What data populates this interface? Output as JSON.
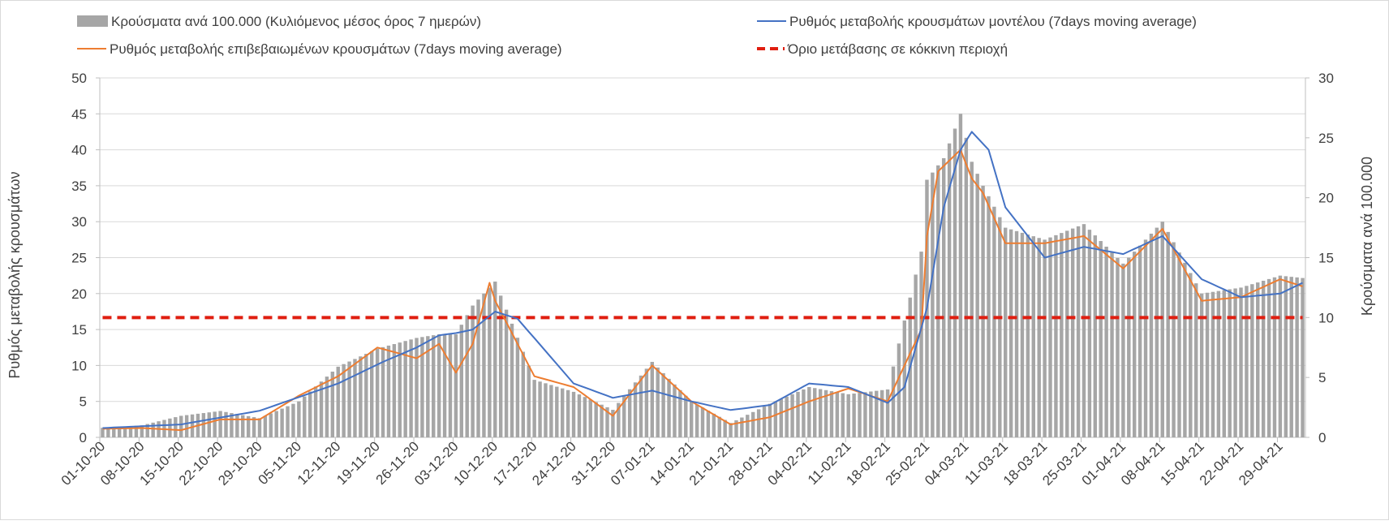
{
  "chart_data": {
    "type": "bar+line",
    "legend": {
      "bars": "Κρούσματα ανά 100.000 (Κυλιόμενος μέσος όρος 7 ημερών)",
      "model": "Ρυθμός μεταβολής κρουσμάτων μοντέλου (7days moving average)",
      "confirmed": "Ρυθμός μεταβολής επιβεβαιωμένων κρουσμάτων (7days moving average)",
      "threshold": "Όριο μετάβασης σε κόκκινη περιοχή"
    },
    "ylabel_left": "Ρυθμός μεταβολής κρουσμάτων",
    "ylabel_right": "Κρούσματα ανά 100.000",
    "ylim_left": [
      0,
      50
    ],
    "ylim_right": [
      0,
      30
    ],
    "yticks_left": [
      "0",
      "5",
      "10",
      "15",
      "20",
      "25",
      "30",
      "35",
      "40",
      "45",
      "50"
    ],
    "yticks_right": [
      "0",
      "5",
      "10",
      "15",
      "20",
      "25",
      "30"
    ],
    "x_tick_labels": [
      "01-10-20",
      "08-10-20",
      "15-10-20",
      "22-10-20",
      "29-10-20",
      "05-11-20",
      "12-11-20",
      "19-11-20",
      "26-11-20",
      "03-12-20",
      "10-12-20",
      "17-12-20",
      "24-12-20",
      "31-12-20",
      "07-01-21",
      "14-01-21",
      "21-01-21",
      "28-01-21",
      "04-02-21",
      "11-02-21",
      "18-02-21",
      "25-02-21",
      "04-03-21",
      "11-03-21",
      "18-03-21",
      "25-03-21",
      "01-04-21",
      "08-04-21",
      "15-04-21",
      "22-04-21",
      "29-04-21"
    ],
    "num_days": 215,
    "threshold_value": 10,
    "bar_anchors_days": [
      0,
      7,
      14,
      21,
      28,
      35,
      42,
      49,
      56,
      60,
      63,
      66,
      70,
      77,
      84,
      91,
      98,
      105,
      112,
      119,
      126,
      133,
      140,
      146,
      147,
      150,
      153,
      155,
      157,
      161,
      168,
      175,
      182,
      189,
      196,
      203,
      210,
      214
    ],
    "bar_anchors_values": [
      0.8,
      1.0,
      1.8,
      2.2,
      1.6,
      3.0,
      5.9,
      7.4,
      8.3,
      8.6,
      8.6,
      11.0,
      13.0,
      4.8,
      3.8,
      2.3,
      6.3,
      3.0,
      1.2,
      2.8,
      4.2,
      3.6,
      4.0,
      15.5,
      21.5,
      23.3,
      27.0,
      23.0,
      21.0,
      17.5,
      16.5,
      17.8,
      14.5,
      18.0,
      12.0,
      12.5,
      13.5,
      13.3
    ],
    "confirmed_anchors_days": [
      0,
      7,
      14,
      21,
      28,
      35,
      42,
      49,
      56,
      60,
      63,
      66,
      69,
      70,
      77,
      84,
      91,
      98,
      105,
      112,
      119,
      126,
      133,
      140,
      146,
      147,
      149,
      153,
      155,
      157,
      161,
      168,
      175,
      182,
      189,
      196,
      203,
      210,
      214
    ],
    "confirmed_anchors_values": [
      1.2,
      1.3,
      1.0,
      2.5,
      2.5,
      5.8,
      8.5,
      12.5,
      11.0,
      13.0,
      9.0,
      13.0,
      21.5,
      19.0,
      8.5,
      7.0,
      3.0,
      10.0,
      5.0,
      1.8,
      2.8,
      5.0,
      6.8,
      5.0,
      15.0,
      28.0,
      37.0,
      40.0,
      36.0,
      34.0,
      27.0,
      27.0,
      28.0,
      23.5,
      29.0,
      19.0,
      19.5,
      22.0,
      21.0
    ],
    "model_anchors_days": [
      0,
      14,
      28,
      42,
      50,
      56,
      60,
      63,
      66,
      70,
      74,
      84,
      91,
      98,
      105,
      112,
      119,
      126,
      133,
      140,
      143,
      147,
      150,
      153,
      155,
      158,
      161,
      168,
      175,
      182,
      189,
      196,
      203,
      210,
      214
    ],
    "model_anchors_values": [
      1.3,
      1.8,
      3.7,
      7.5,
      10.5,
      12.5,
      14.2,
      14.5,
      15.0,
      17.5,
      16.5,
      7.5,
      5.5,
      6.5,
      5.0,
      3.8,
      4.5,
      7.5,
      7.0,
      4.8,
      7.0,
      18.0,
      32.0,
      40.0,
      42.5,
      40.0,
      32.0,
      25.0,
      26.5,
      25.5,
      28.0,
      22.0,
      19.5,
      20.0,
      21.5
    ]
  }
}
